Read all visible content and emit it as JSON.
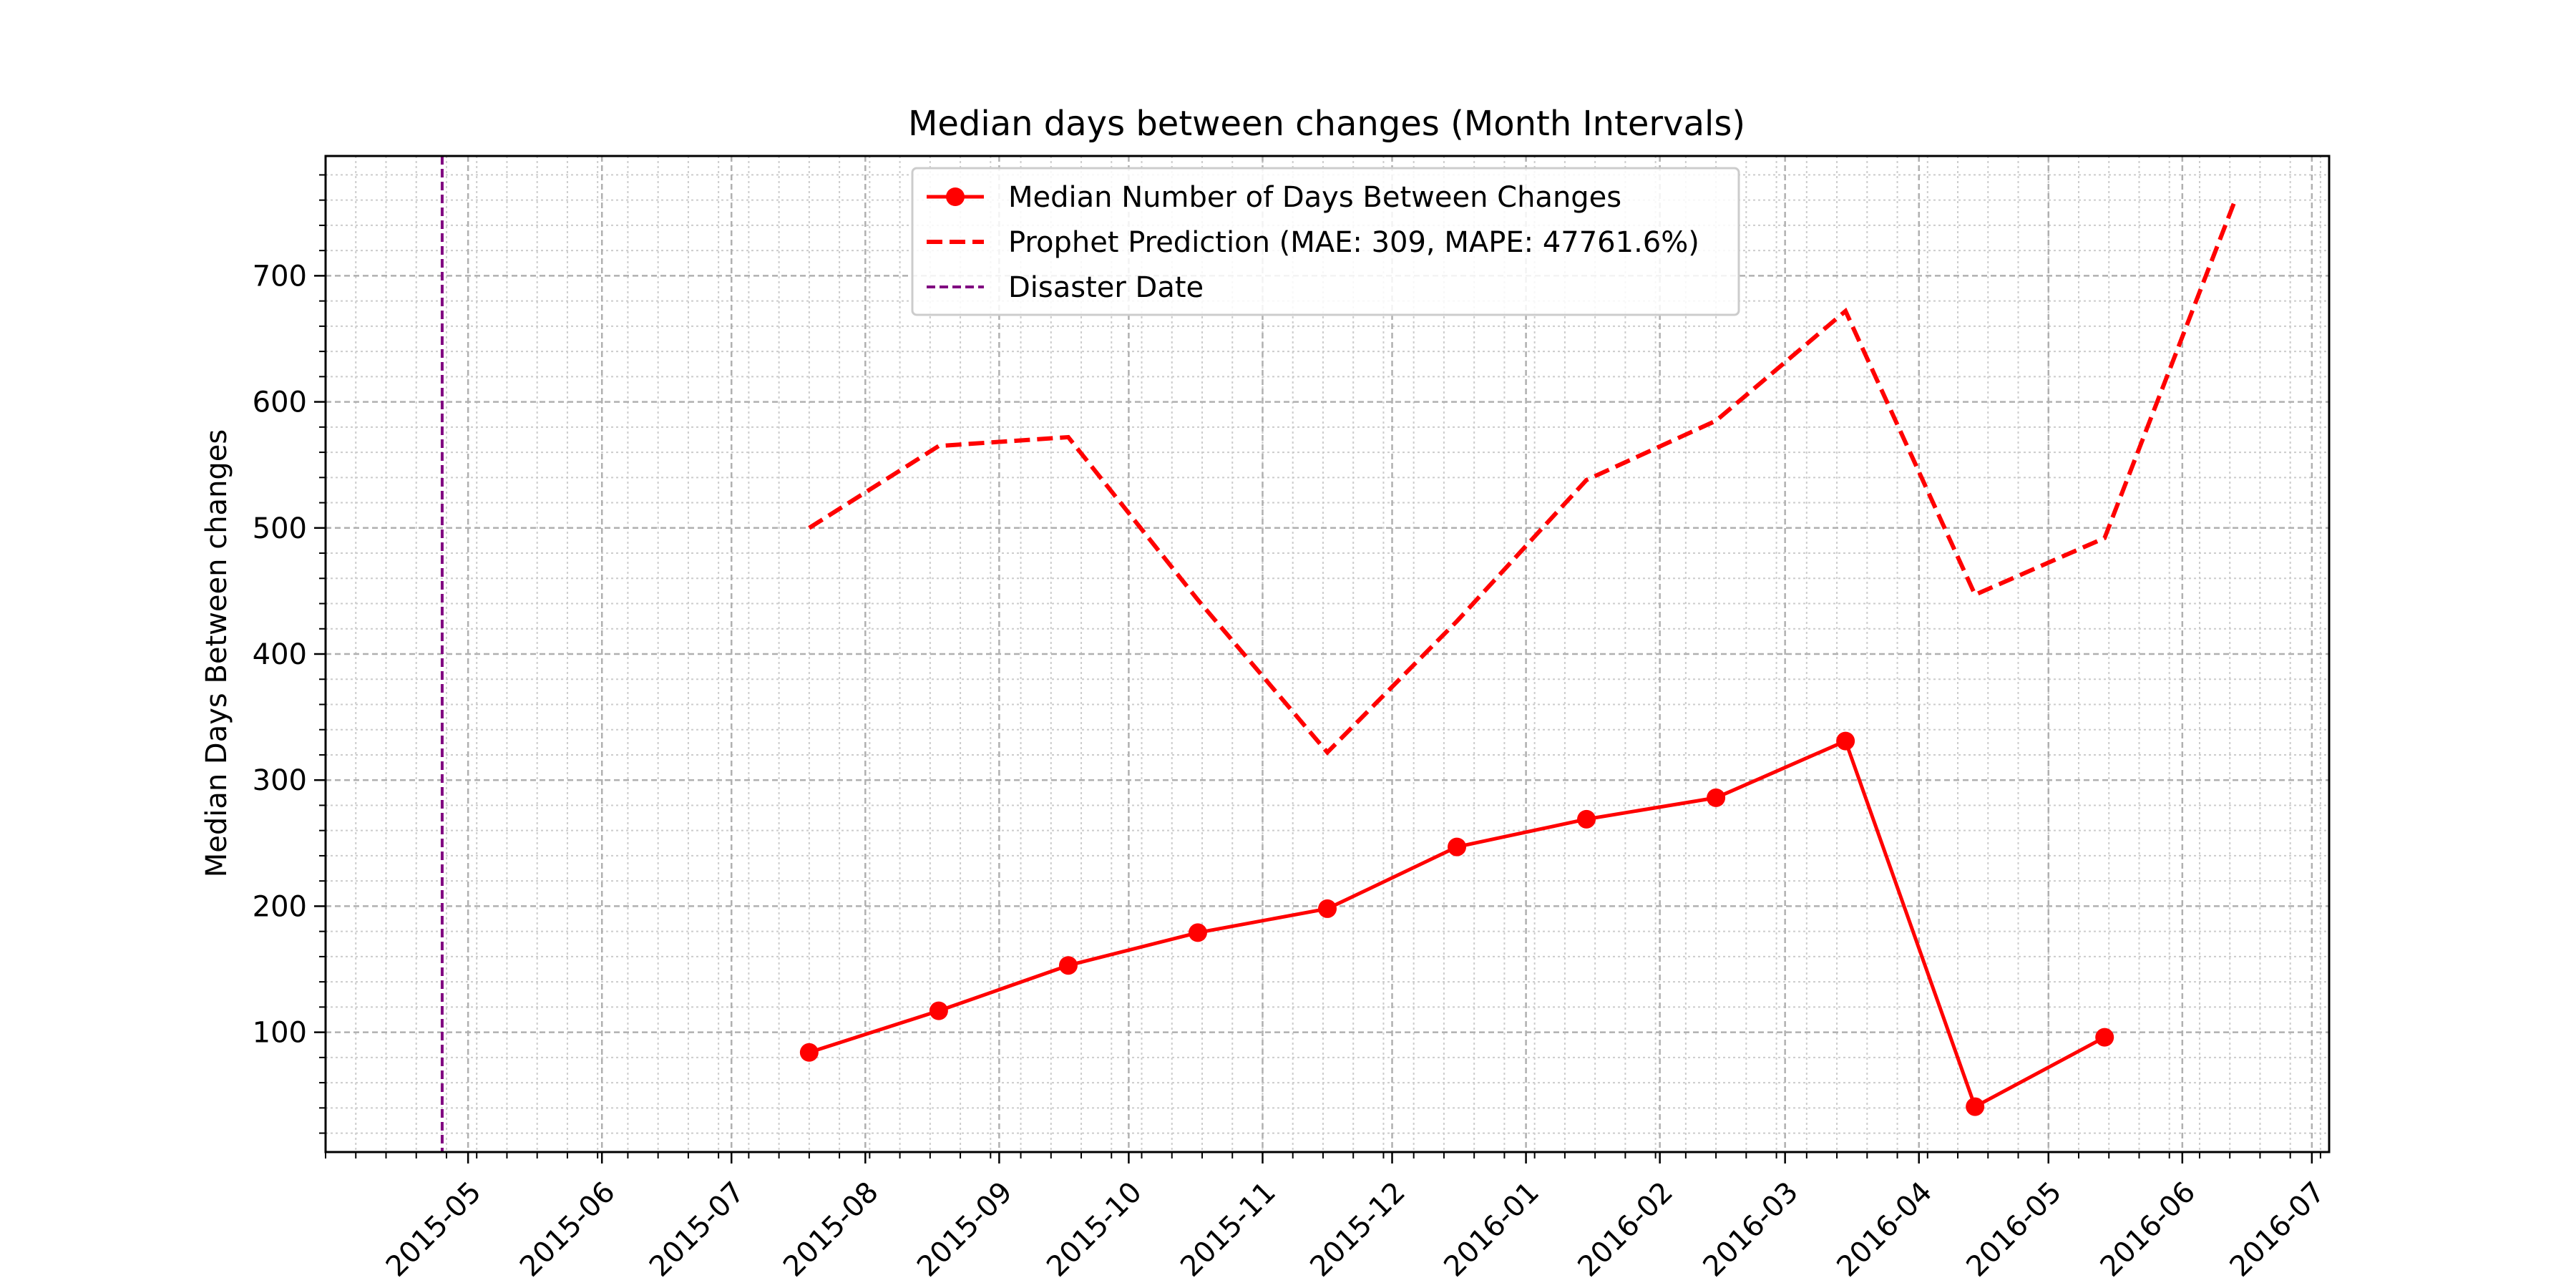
{
  "chart_data": {
    "type": "line",
    "title": "Median days between changes (Month Intervals)",
    "xlabel": "",
    "ylabel": "Median Days Between changes",
    "x_axis_type": "date",
    "xlim": [
      "2015-03-29",
      "2016-07-05"
    ],
    "ylim": [
      5,
      795
    ],
    "x_ticks": [
      "2015-05",
      "2015-06",
      "2015-07",
      "2015-08",
      "2015-09",
      "2015-10",
      "2015-11",
      "2015-12",
      "2016-01",
      "2016-02",
      "2016-03",
      "2016-04",
      "2016-05",
      "2016-06",
      "2016-07"
    ],
    "y_ticks": [
      100,
      200,
      300,
      400,
      500,
      600,
      700
    ],
    "grid": true,
    "minor_grid": true,
    "legend_position": "upper center",
    "series": [
      {
        "name": "Median Number of Days Between Changes",
        "style": "solid line with circle markers",
        "color": "#ff0000",
        "x": [
          "2015-07-19",
          "2015-08-18",
          "2015-09-17",
          "2015-10-17",
          "2015-11-16",
          "2015-12-16",
          "2016-01-15",
          "2016-02-14",
          "2016-03-15",
          "2016-04-14",
          "2016-05-14"
        ],
        "y": [
          84,
          117,
          153,
          179,
          198,
          247,
          269,
          286,
          331,
          41,
          96
        ]
      },
      {
        "name": "Prophet Prediction (MAE: 309, MAPE: 47761.6%)",
        "style": "dashed line",
        "color": "#ff0000",
        "x": [
          "2015-07-19",
          "2015-08-18",
          "2015-09-17",
          "2015-10-17",
          "2015-11-16",
          "2015-12-16",
          "2016-01-15",
          "2016-02-14",
          "2016-03-15",
          "2016-04-14",
          "2016-05-14",
          "2016-06-13"
        ],
        "y": [
          500,
          565,
          572,
          443,
          322,
          426,
          538,
          585,
          672,
          447,
          492,
          758
        ]
      },
      {
        "name": "Disaster Date",
        "style": "vertical dashed line",
        "color": "#800080",
        "x": [
          "2015-04-25"
        ]
      }
    ]
  }
}
